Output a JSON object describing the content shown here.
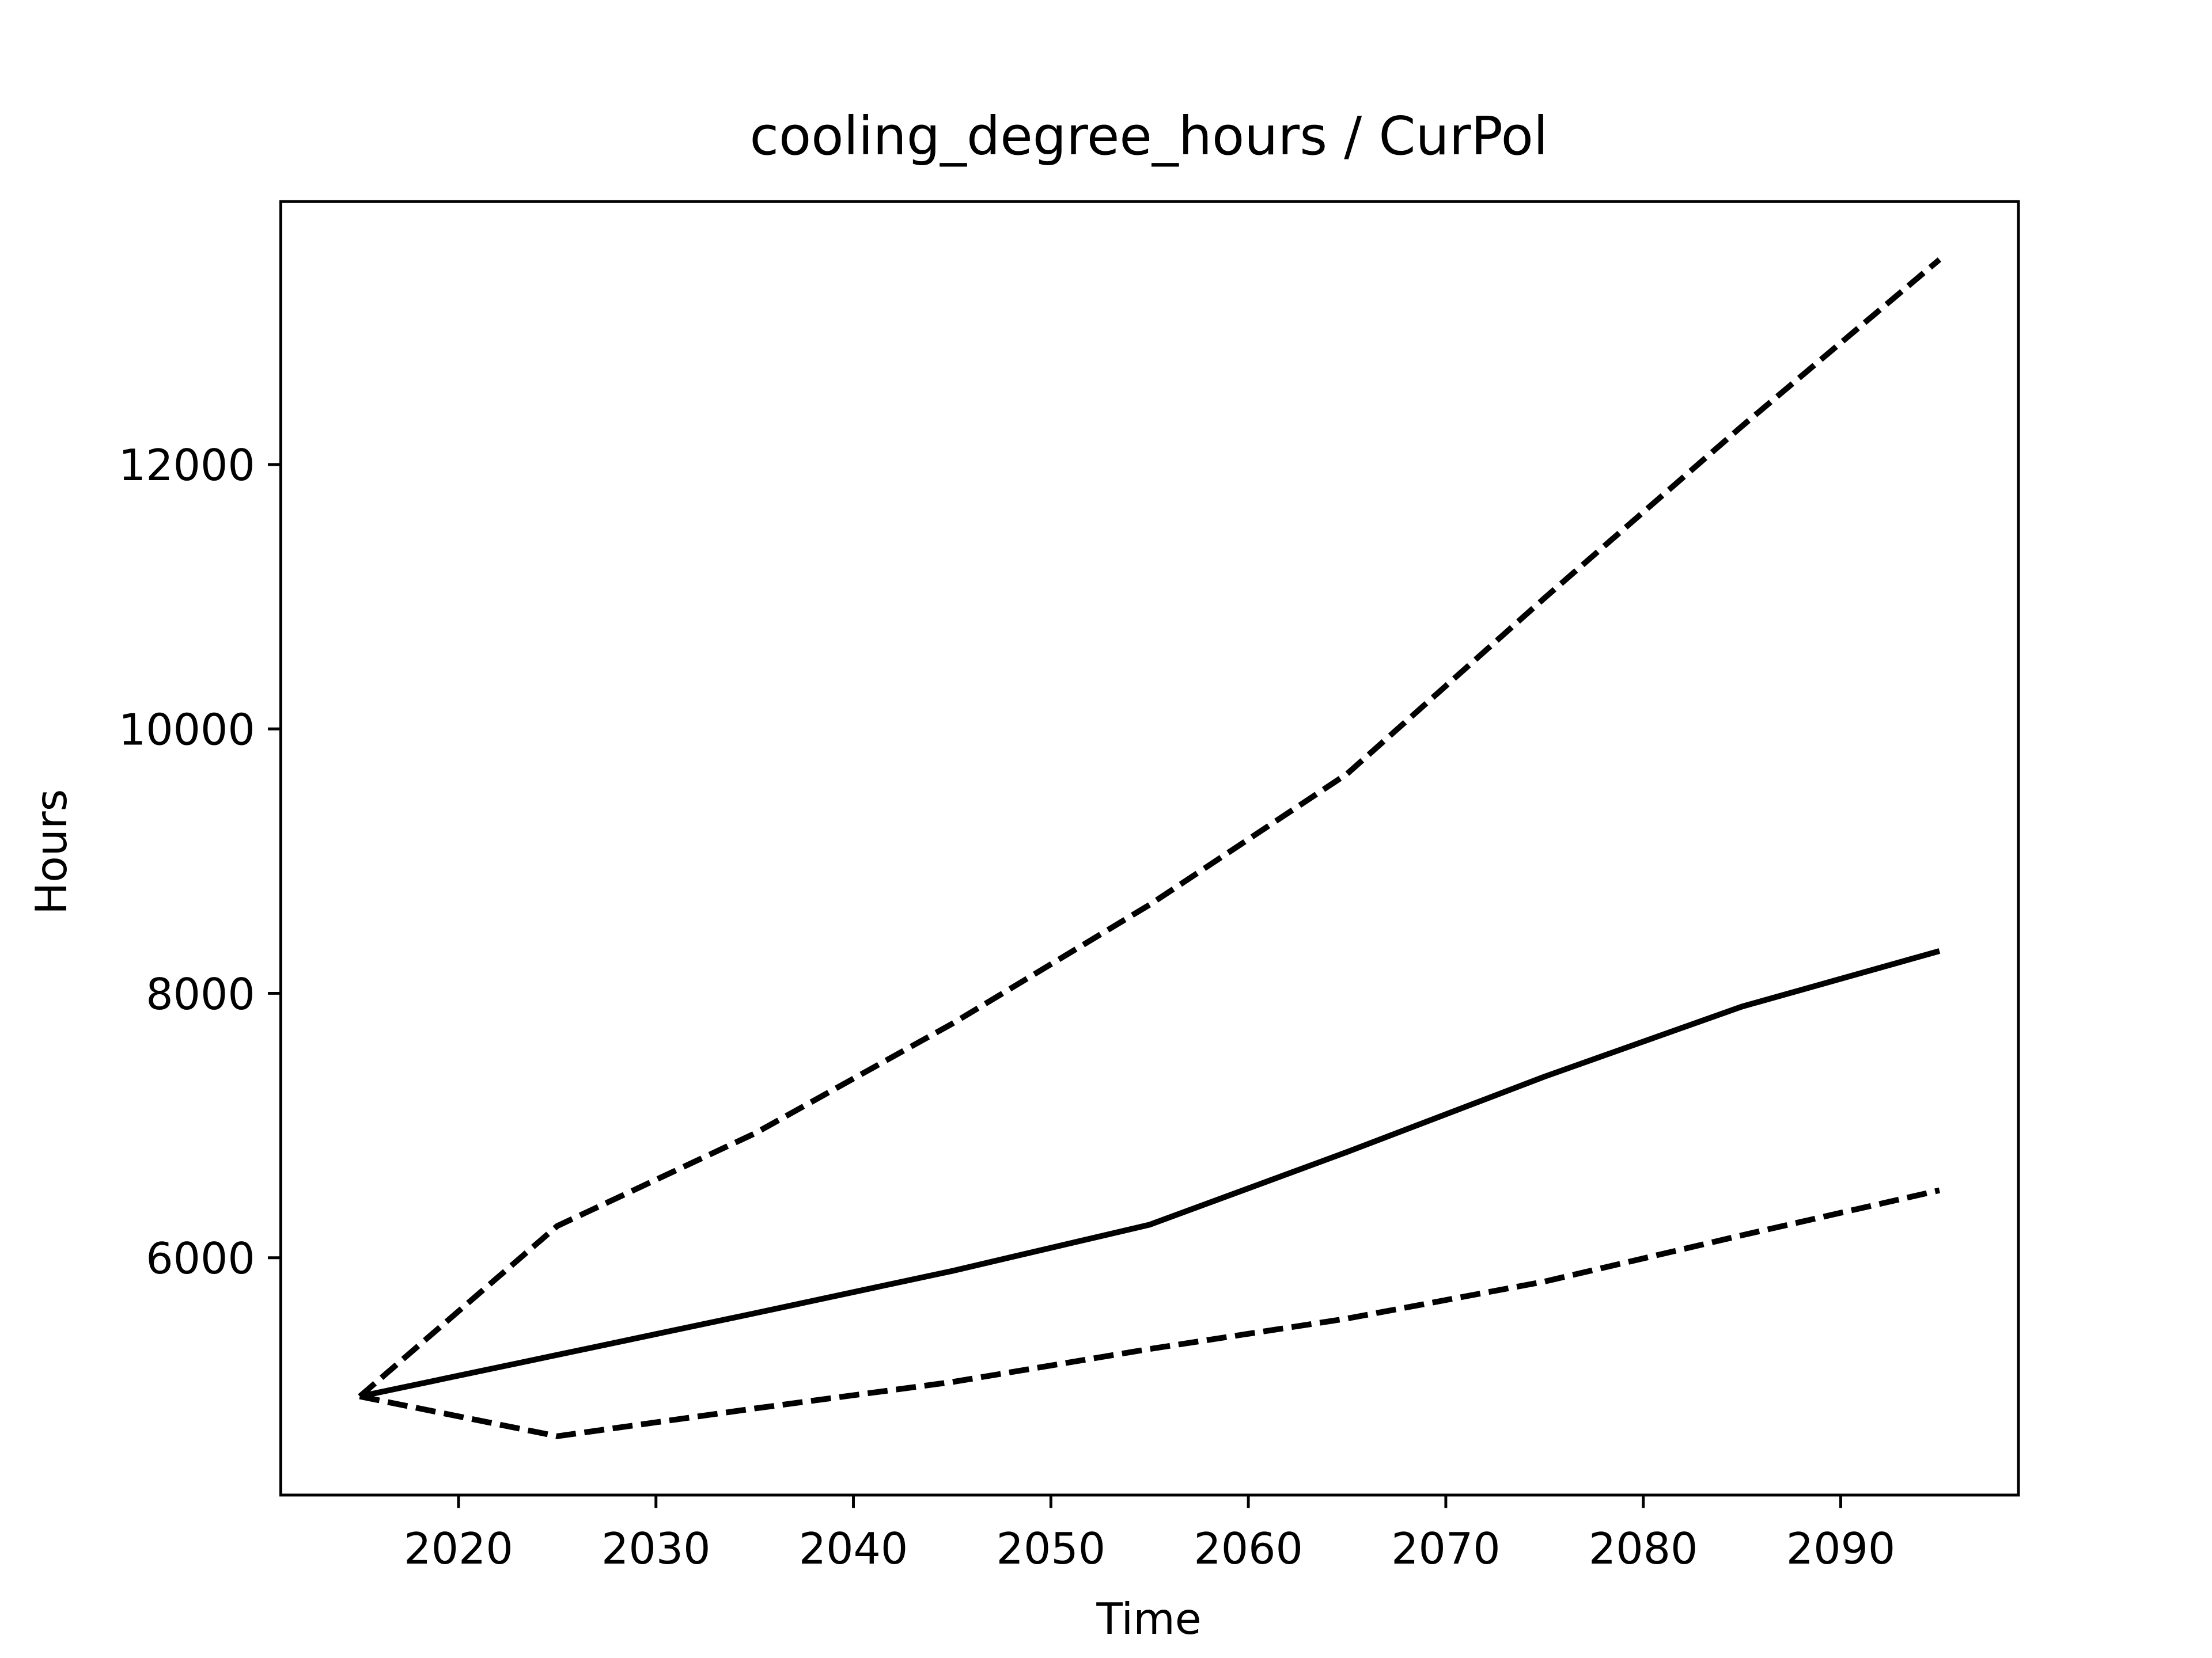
{
  "chart_data": {
    "type": "line",
    "title": "cooling_degree_hours / CurPol",
    "xlabel": "Time",
    "ylabel": "Hours",
    "x": [
      2015,
      2025,
      2035,
      2045,
      2055,
      2065,
      2075,
      2085,
      2095
    ],
    "series": [
      {
        "color": "#000000",
        "linestyle": "solid",
        "values": [
          4951,
          5265,
          5580,
          5900,
          6250,
          6800,
          7370,
          7900,
          8320
        ]
      },
      {
        "color": "#000000",
        "linestyle": "dashed",
        "values": [
          4951,
          6240,
          6940,
          7770,
          8670,
          9660,
          10990,
          12290,
          13550
        ]
      },
      {
        "color": "#000000",
        "linestyle": "dashed",
        "values": [
          4951,
          4650,
          4860,
          5060,
          5310,
          5540,
          5820,
          6170,
          6510
        ]
      }
    ],
    "xlim": [
      2011,
      2099
    ],
    "xticks": [
      2020,
      2030,
      2040,
      2050,
      2060,
      2070,
      2080,
      2090
    ],
    "ylim": [
      4205,
      13989
    ],
    "yticks": [
      6000,
      8000,
      10000,
      12000
    ]
  }
}
